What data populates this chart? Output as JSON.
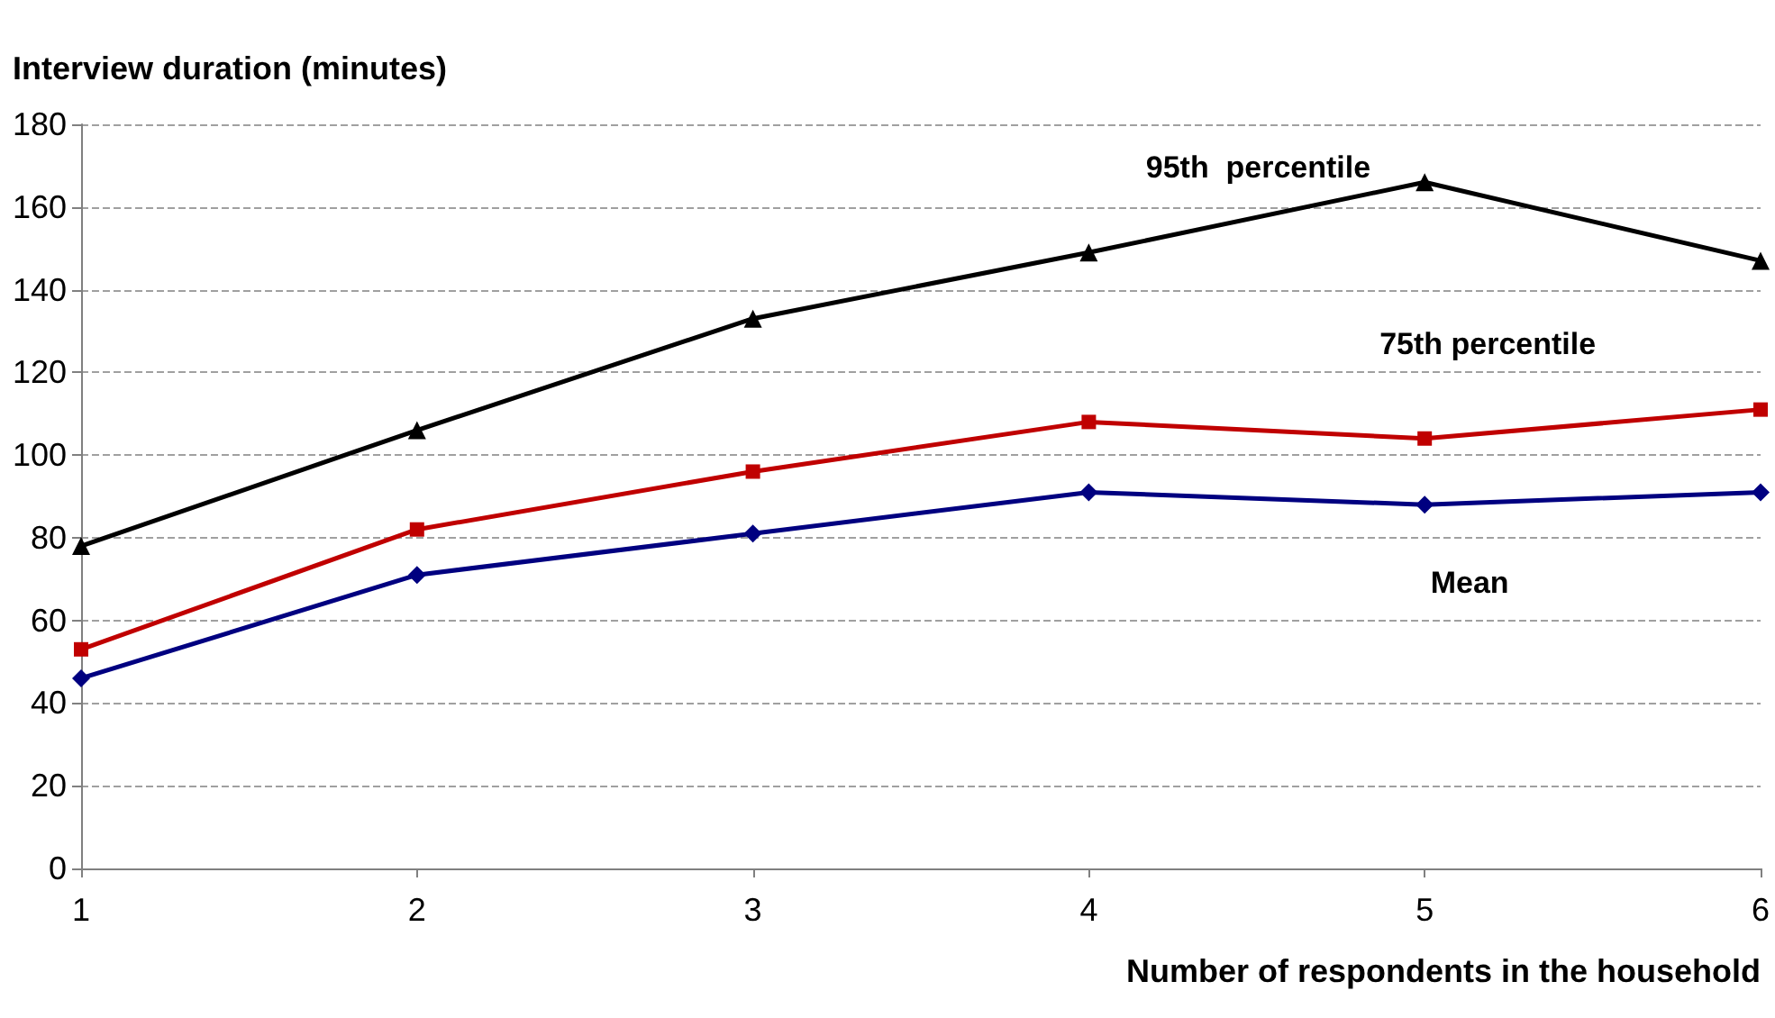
{
  "chart_data": {
    "type": "line",
    "xlabel": "Number of respondents in the household",
    "ylabel": "Interview duration (minutes)",
    "x": [
      1,
      2,
      3,
      4,
      5,
      6
    ],
    "xlim": [
      1,
      6
    ],
    "xticks": [
      1,
      2,
      3,
      4,
      5,
      6
    ],
    "ylim": [
      0,
      180
    ],
    "yticks": [
      0,
      20,
      40,
      60,
      80,
      100,
      120,
      140,
      160,
      180
    ],
    "grid": "y",
    "legend": false,
    "series": [
      {
        "name": "95th  percentile",
        "color": "#000000",
        "marker": "triangle",
        "values": [
          78,
          106,
          133,
          149,
          166,
          147
        ]
      },
      {
        "name": "75th percentile",
        "color": "#c00000",
        "marker": "square",
        "values": [
          53,
          82,
          96,
          108,
          104,
          111
        ]
      },
      {
        "name": "Mean",
        "color": "#000080",
        "marker": "diamond",
        "values": [
          46,
          71,
          81,
          91,
          88,
          91
        ]
      }
    ]
  }
}
